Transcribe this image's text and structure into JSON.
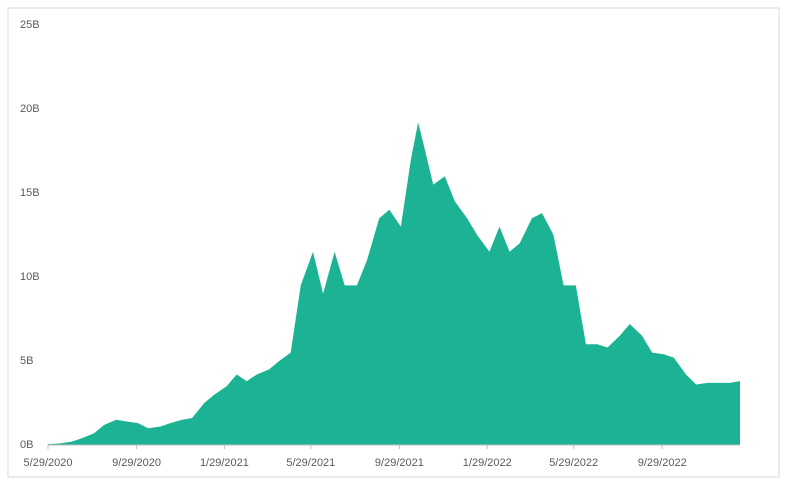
{
  "chart_data": {
    "type": "area",
    "x": [
      "5/29/2020",
      "6/15/2020",
      "7/1/2020",
      "7/15/2020",
      "8/1/2020",
      "8/15/2020",
      "9/1/2020",
      "9/15/2020",
      "10/1/2020",
      "10/15/2020",
      "11/1/2020",
      "11/15/2020",
      "12/1/2020",
      "12/15/2020",
      "1/1/2021",
      "1/15/2021",
      "2/1/2021",
      "2/15/2021",
      "3/1/2021",
      "3/15/2021",
      "4/1/2021",
      "4/15/2021",
      "5/1/2021",
      "5/15/2021",
      "6/1/2021",
      "6/15/2021",
      "7/1/2021",
      "7/15/2021",
      "8/1/2021",
      "8/15/2021",
      "9/1/2021",
      "9/15/2021",
      "10/1/2021",
      "10/15/2021",
      "10/25/2021",
      "11/1/2021",
      "11/15/2021",
      "12/1/2021",
      "12/15/2021",
      "1/1/2022",
      "1/15/2022",
      "2/1/2022",
      "2/15/2022",
      "3/1/2022",
      "3/15/2022",
      "4/1/2022",
      "4/15/2022",
      "5/1/2022",
      "5/15/2022",
      "6/1/2022",
      "6/15/2022",
      "7/1/2022",
      "7/15/2022",
      "8/1/2022",
      "8/15/2022",
      "9/1/2022",
      "9/15/2022",
      "10/1/2022",
      "10/15/2022",
      "11/1/2022",
      "11/15/2022",
      "12/1/2022",
      "12/15/2022",
      "1/1/2023",
      "1/15/2023"
    ],
    "values": [
      0.05,
      0.1,
      0.2,
      0.4,
      0.7,
      1.2,
      1.5,
      1.4,
      1.3,
      1.0,
      1.1,
      1.3,
      1.5,
      1.6,
      2.5,
      3.0,
      3.5,
      4.2,
      3.8,
      4.2,
      4.5,
      5.0,
      5.5,
      9.5,
      11.5,
      9.0,
      11.5,
      9.5,
      9.5,
      11.0,
      13.5,
      14.0,
      13.0,
      17.0,
      19.2,
      18.0,
      15.5,
      16.0,
      14.5,
      13.5,
      12.5,
      11.5,
      13.0,
      11.5,
      12.0,
      13.5,
      13.8,
      12.5,
      9.5,
      9.5,
      6.0,
      6.0,
      5.8,
      6.5,
      7.2,
      6.5,
      5.5,
      5.4,
      5.2,
      4.2,
      3.6,
      3.7,
      3.7,
      3.7,
      3.8
    ],
    "color": "#1cb394",
    "xlim": [
      "5/29/2020",
      "1/15/2023"
    ],
    "xticks": [
      "5/29/2020",
      "9/29/2020",
      "1/29/2021",
      "5/29/2021",
      "9/29/2021",
      "1/29/2022",
      "5/29/2022",
      "9/29/2022"
    ],
    "ylim": [
      0,
      25
    ],
    "yticks": [
      {
        "value": 0,
        "label": "0B"
      },
      {
        "value": 5,
        "label": "5B"
      },
      {
        "value": 10,
        "label": "10B"
      },
      {
        "value": 15,
        "label": "15B"
      },
      {
        "value": 20,
        "label": "20B"
      },
      {
        "value": 25,
        "label": "25B"
      }
    ],
    "grid": false
  }
}
